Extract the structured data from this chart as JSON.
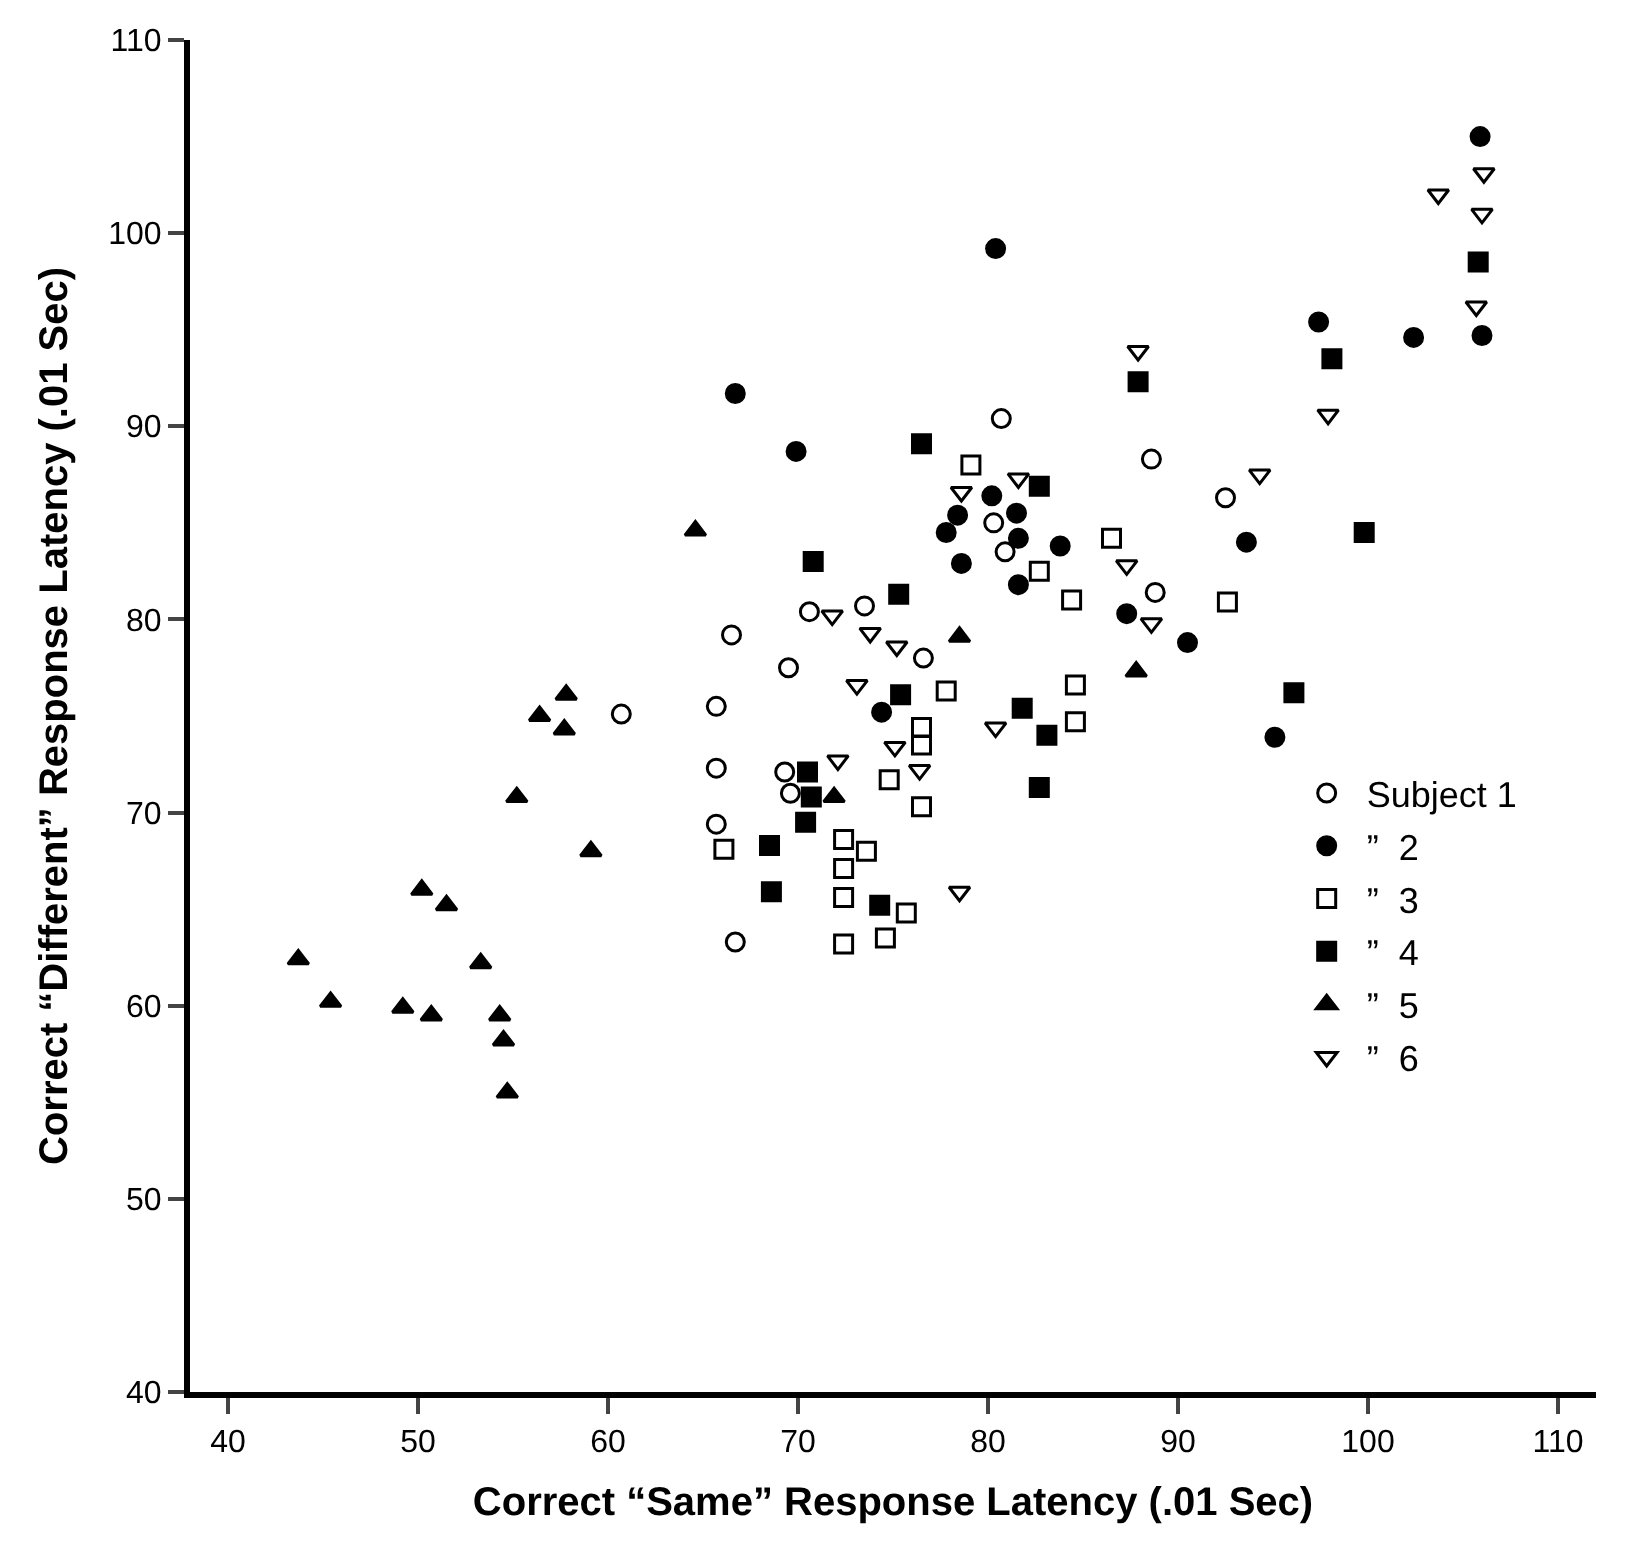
{
  "chart_data": {
    "type": "scatter",
    "xlabel": "Correct “Same” Response Latency (.01 Sec)",
    "ylabel": "Correct “Different” Response Latency (.01 Sec)",
    "xlim": [
      38,
      112
    ],
    "ylim": [
      40,
      110
    ],
    "xticks": [
      40,
      50,
      60,
      70,
      80,
      90,
      100,
      110
    ],
    "yticks": [
      40,
      50,
      60,
      70,
      80,
      90,
      100,
      110
    ],
    "grid": false,
    "legend": "right",
    "series": [
      {
        "name": "Subject 1",
        "color": "#000000",
        "marker": "circle-open",
        "x": [
          60.7,
          65.7,
          65.7,
          65.7,
          66.7,
          66.5,
          69.5,
          70.6,
          69.3,
          69.6,
          73.5,
          76.6,
          80.7,
          80.3,
          80.9,
          88.6,
          88.8,
          92.5
        ],
        "values": [
          75.1,
          75.5,
          72.3,
          69.4,
          63.3,
          79.2,
          77.5,
          80.4,
          72.1,
          71.0,
          80.7,
          78.0,
          90.4,
          85.0,
          83.5,
          88.3,
          81.4,
          86.3
        ]
      },
      {
        "name": "”  2",
        "color": "#000000",
        "marker": "circle",
        "x": [
          80.4,
          66.7,
          69.9,
          80.2,
          78.4,
          81.5,
          77.8,
          81.6,
          83.8,
          78.6,
          81.6,
          87.3,
          90.5,
          74.4,
          105.9,
          97.4,
          102.4,
          106.0,
          93.6,
          95.1
        ],
        "values": [
          99.2,
          91.7,
          88.7,
          86.4,
          85.4,
          85.5,
          84.5,
          84.2,
          83.8,
          82.9,
          81.8,
          80.3,
          78.8,
          75.2,
          105.0,
          95.4,
          94.6,
          94.7,
          84.0,
          73.9
        ]
      },
      {
        "name": "”  3",
        "color": "#000000",
        "marker": "square-open",
        "x": [
          66.1,
          79.1,
          86.5,
          82.7,
          84.4,
          77.8,
          84.6,
          84.6,
          76.5,
          76.5,
          74.8,
          76.5,
          72.4,
          73.6,
          72.4,
          72.4,
          75.7,
          72.4,
          74.6,
          92.6
        ],
        "values": [
          68.1,
          88.0,
          84.2,
          82.5,
          81.0,
          76.3,
          76.6,
          74.7,
          74.4,
          73.5,
          71.7,
          70.3,
          68.6,
          68.0,
          67.1,
          65.6,
          64.8,
          63.2,
          63.5,
          80.9
        ]
      },
      {
        "name": "”  4",
        "color": "#000000",
        "marker": "square",
        "x": [
          70.8,
          70.5,
          70.7,
          70.4,
          68.5,
          68.6,
          76.5,
          82.7,
          75.3,
          75.4,
          81.8,
          83.1,
          82.7,
          74.3,
          87.9,
          98.1,
          99.8,
          96.1,
          105.8
        ],
        "values": [
          83.0,
          72.1,
          70.8,
          69.5,
          68.3,
          65.9,
          89.1,
          86.9,
          81.3,
          76.1,
          75.4,
          74.0,
          71.3,
          65.2,
          92.3,
          93.5,
          84.5,
          76.2,
          98.5
        ]
      },
      {
        "name": "”  5",
        "color": "#000000",
        "marker": "triangle-up",
        "x": [
          64.6,
          57.8,
          56.4,
          57.7,
          55.2,
          59.1,
          50.2,
          51.5,
          43.7,
          45.4,
          53.3,
          49.2,
          50.7,
          54.3,
          54.5,
          54.7,
          78.5,
          71.9,
          87.8
        ],
        "values": [
          84.6,
          76.1,
          75.0,
          74.3,
          70.8,
          68.0,
          66.0,
          65.2,
          62.4,
          60.2,
          62.2,
          59.9,
          59.5,
          59.5,
          58.2,
          55.5,
          79.1,
          70.8,
          77.3
        ]
      },
      {
        "name": "”  6",
        "color": "#000000",
        "marker": "triangle-down-open",
        "x": [
          87.9,
          81.6,
          78.6,
          87.3,
          88.6,
          71.8,
          73.8,
          75.2,
          73.1,
          80.4,
          75.1,
          76.4,
          72.1,
          78.5,
          106.1,
          103.7,
          106.0,
          105.7,
          97.9,
          94.3
        ],
        "values": [
          93.9,
          87.3,
          86.6,
          82.8,
          79.8,
          80.2,
          79.3,
          78.6,
          76.6,
          74.4,
          73.4,
          72.2,
          72.7,
          65.9,
          103.1,
          102.0,
          101.0,
          96.2,
          90.6,
          87.5
        ]
      }
    ]
  }
}
